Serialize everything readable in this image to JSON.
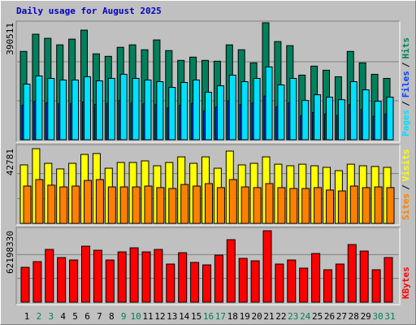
{
  "title": "Daily usage for August 2025",
  "categories": [
    "1",
    "2",
    "3",
    "4",
    "5",
    "6",
    "7",
    "8",
    "9",
    "10",
    "11",
    "12",
    "13",
    "14",
    "15",
    "16",
    "17",
    "18",
    "19",
    "20",
    "21",
    "22",
    "23",
    "24",
    "25",
    "26",
    "27",
    "28",
    "29",
    "30",
    "31"
  ],
  "category_colors": [
    "#000000",
    "#00805c",
    "#00805c",
    "#000000",
    "#000000",
    "#000000",
    "#000000",
    "#000000",
    "#00805c",
    "#00805c",
    "#000000",
    "#000000",
    "#000000",
    "#000000",
    "#000000",
    "#00805c",
    "#00805c",
    "#000000",
    "#000000",
    "#000000",
    "#000000",
    "#000000",
    "#00805c",
    "#00805c",
    "#000000",
    "#000000",
    "#000000",
    "#000000",
    "#000000",
    "#00805c",
    "#00805c"
  ],
  "legend_separator": "/",
  "chart_data": [
    {
      "type": "bar",
      "ylim": [
        0,
        390511
      ],
      "yticks": [
        390511
      ],
      "series": [
        {
          "name": "Hits",
          "color": "#00805c",
          "values": [
            294900,
            352300,
            338600,
            316800,
            335900,
            365900,
            286700,
            278500,
            308600,
            316800,
            300400,
            333200,
            297600,
            264900,
            275800,
            264900,
            262200,
            316800,
            300400,
            256700,
            390511,
            327700,
            314100,
            215700,
            245800,
            232100,
            210300,
            294900,
            256700,
            218500,
            204800
          ]
        },
        {
          "name": "Files",
          "color": "#0040ff",
          "values": [
            115000,
            128000,
            123000,
            120000,
            121000,
            126000,
            118000,
            122000,
            131000,
            123000,
            120000,
            117000,
            106000,
            115000,
            121000,
            96000,
            109000,
            130000,
            117000,
            123000,
            146000,
            110000,
            123000,
            80000,
            91000,
            86000,
            81000,
            117000,
            101000,
            78000,
            86000
          ]
        },
        {
          "name": "Pages",
          "color": "#00e0ff",
          "values": [
            185700,
            213000,
            204800,
            199400,
            199400,
            210300,
            196600,
            204800,
            218500,
            204800,
            199400,
            193900,
            174800,
            191200,
            199400,
            158400,
            180200,
            215700,
            193900,
            204800,
            243100,
            183000,
            204800,
            131100,
            150200,
            142000,
            133800,
            193900,
            166600,
            128400,
            142000
          ]
        }
      ]
    },
    {
      "type": "bar",
      "ylim": [
        0,
        42781
      ],
      "yticks": [
        42781
      ],
      "series": [
        {
          "name": "Visits",
          "color": "#ffff00",
          "values": [
            33500,
            42781,
            34400,
            31200,
            34400,
            39500,
            40000,
            31600,
            34900,
            34900,
            35800,
            33000,
            34900,
            38100,
            34400,
            38100,
            31600,
            41400,
            33500,
            34400,
            38100,
            33900,
            33000,
            33900,
            33000,
            32100,
            30200,
            33900,
            33000,
            32600,
            32100
          ]
        },
        {
          "name": "Sites",
          "color": "#ff8000",
          "values": [
            21400,
            25100,
            21900,
            20900,
            21400,
            24600,
            25100,
            20900,
            20900,
            20900,
            21400,
            20500,
            20000,
            22300,
            21400,
            22800,
            20500,
            25100,
            20900,
            20500,
            22800,
            20500,
            20000,
            20000,
            20500,
            19100,
            18600,
            21400,
            20500,
            20900,
            20500
          ]
        }
      ]
    },
    {
      "type": "bar",
      "ylim": [
        0,
        62198330
      ],
      "yticks": [
        62198330
      ],
      "series": [
        {
          "name": "KBytes",
          "color": "#ff0000",
          "values": [
            30392000,
            35340000,
            45942000,
            38874000,
            36754000,
            48769000,
            45235000,
            36754000,
            43822000,
            47356000,
            43822000,
            45942000,
            33220000,
            43115000,
            34633000,
            32513000,
            40994000,
            54424000,
            38167000,
            36047000,
            62198330,
            33220000,
            36754000,
            29686000,
            42408000,
            28272000,
            33220000,
            50183000,
            44528000,
            28272000,
            38874000
          ]
        }
      ]
    }
  ]
}
